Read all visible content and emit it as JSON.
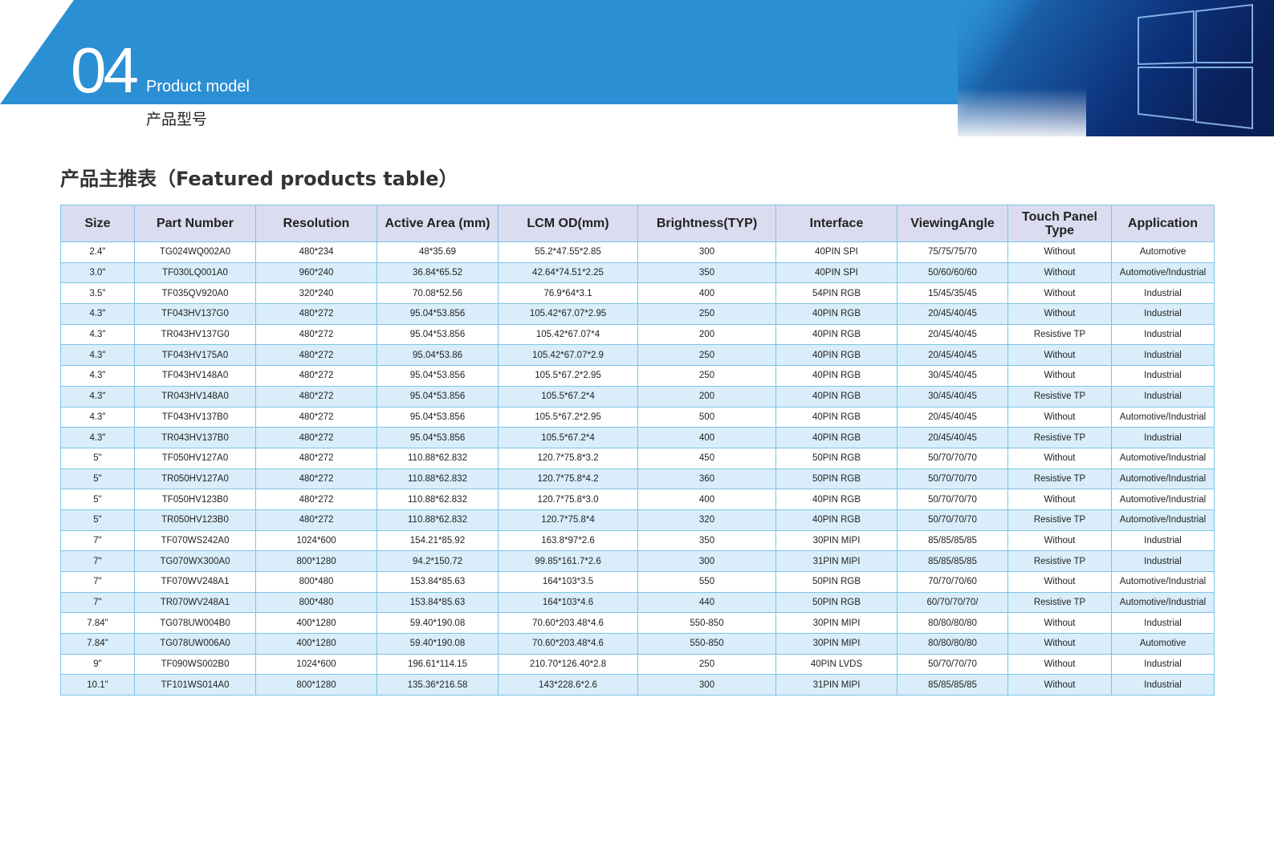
{
  "header": {
    "number": "04",
    "title": "Product model",
    "subtitle": "产品型号"
  },
  "table": {
    "title": "产品主推表（Featured products table）",
    "columns": [
      "Size",
      "Part Number",
      "Resolution",
      "Active Area (mm)",
      "LCM OD(mm)",
      "Brightness(TYP)",
      "Interface",
      "ViewingAngle",
      "Touch Panel Type",
      "Application"
    ],
    "rows": [
      [
        "2.4\"",
        "TG024WQ002A0",
        "480*234",
        "48*35.69",
        "55.2*47.55*2.85",
        "300",
        "40PIN SPI",
        "75/75/75/70",
        "Without",
        "Automotive"
      ],
      [
        "3.0\"",
        "TF030LQ001A0",
        "960*240",
        "36.84*65.52",
        "42.64*74.51*2.25",
        "350",
        "40PIN SPI",
        "50/60/60/60",
        "Without",
        "Automotive/Industrial"
      ],
      [
        "3.5\"",
        "TF035QV920A0",
        "320*240",
        "70.08*52.56",
        "76.9*64*3.1",
        "400",
        "54PIN RGB",
        "15/45/35/45",
        "Without",
        "Industrial"
      ],
      [
        "4.3\"",
        "TF043HV137G0",
        "480*272",
        "95.04*53.856",
        "105.42*67.07*2.95",
        "250",
        "40PIN RGB",
        "20/45/40/45",
        "Without",
        "Industrial"
      ],
      [
        "4.3\"",
        "TR043HV137G0",
        "480*272",
        "95.04*53.856",
        "105.42*67.07*4",
        "200",
        "40PIN RGB",
        "20/45/40/45",
        "Resistive TP",
        "Industrial"
      ],
      [
        "4.3\"",
        "TF043HV175A0",
        "480*272",
        "95.04*53.86",
        "105.42*67.07*2.9",
        "250",
        "40PIN RGB",
        "20/45/40/45",
        "Without",
        "Industrial"
      ],
      [
        "4.3\"",
        "TF043HV148A0",
        "480*272",
        "95.04*53.856",
        "105.5*67.2*2.95",
        "250",
        "40PIN RGB",
        "30/45/40/45",
        "Without",
        "Industrial"
      ],
      [
        "4.3\"",
        "TR043HV148A0",
        "480*272",
        "95.04*53.856",
        "105.5*67.2*4",
        "200",
        "40PIN RGB",
        "30/45/40/45",
        "Resistive TP",
        "Industrial"
      ],
      [
        "4.3\"",
        "TF043HV137B0",
        "480*272",
        "95.04*53.856",
        "105.5*67.2*2.95",
        "500",
        "40PIN RGB",
        "20/45/40/45",
        "Without",
        "Automotive/Industrial"
      ],
      [
        "4.3\"",
        "TR043HV137B0",
        "480*272",
        "95.04*53.856",
        "105.5*67.2*4",
        "400",
        "40PIN RGB",
        "20/45/40/45",
        "Resistive TP",
        "Industrial"
      ],
      [
        "5\"",
        "TF050HV127A0",
        "480*272",
        "110.88*62.832",
        "120.7*75.8*3.2",
        "450",
        "50PIN RGB",
        "50/70/70/70",
        "Without",
        "Automotive/Industrial"
      ],
      [
        "5\"",
        "TR050HV127A0",
        "480*272",
        "110.88*62.832",
        "120.7*75.8*4.2",
        "360",
        "50PIN RGB",
        "50/70/70/70",
        "Resistive TP",
        "Automotive/Industrial"
      ],
      [
        "5\"",
        "TF050HV123B0",
        "480*272",
        "110.88*62.832",
        "120.7*75.8*3.0",
        "400",
        "40PIN RGB",
        "50/70/70/70",
        "Without",
        "Automotive/Industrial"
      ],
      [
        "5\"",
        "TR050HV123B0",
        "480*272",
        "110.88*62.832",
        "120.7*75.8*4",
        "320",
        "40PIN RGB",
        "50/70/70/70",
        "Resistive TP",
        "Automotive/Industrial"
      ],
      [
        "7\"",
        "TF070WS242A0",
        "1024*600",
        "154.21*85.92",
        "163.8*97*2.6",
        "350",
        "30PIN MIPI",
        "85/85/85/85",
        "Without",
        "Industrial"
      ],
      [
        "7\"",
        "TG070WX300A0",
        "800*1280",
        "94.2*150.72",
        "99.85*161.7*2.6",
        "300",
        "31PIN MIPI",
        "85/85/85/85",
        "Resistive TP",
        "Industrial"
      ],
      [
        "7\"",
        "TF070WV248A1",
        "800*480",
        "153.84*85.63",
        "164*103*3.5",
        "550",
        "50PIN RGB",
        "70/70/70/60",
        "Without",
        "Automotive/Industrial"
      ],
      [
        "7\"",
        "TR070WV248A1",
        "800*480",
        "153.84*85.63",
        "164*103*4.6",
        "440",
        "50PIN RGB",
        "60/70/70/70/",
        "Resistive TP",
        "Automotive/Industrial"
      ],
      [
        "7.84\"",
        "TG078UW004B0",
        "400*1280",
        "59.40*190.08",
        "70.60*203.48*4.6",
        "550-850",
        "30PIN MIPI",
        "80/80/80/80",
        "Without",
        "Industrial"
      ],
      [
        "7.84\"",
        "TG078UW006A0",
        "400*1280",
        "59.40*190.08",
        "70.60*203.48*4.6",
        "550-850",
        "30PIN MIPI",
        "80/80/80/80",
        "Without",
        "Automotive"
      ],
      [
        "9\"",
        "TF090WS002B0",
        "1024*600",
        "196.61*114.15",
        "210.70*126.40*2.8",
        "250",
        "40PIN LVDS",
        "50/70/70/70",
        "Without",
        "Industrial"
      ],
      [
        "10.1\"",
        "TF101WS014A0",
        "800*1280",
        "135.36*216.58",
        "143*228.6*2.6",
        "300",
        "31PIN MIPI",
        "85/85/85/85",
        "Without",
        "Industrial"
      ]
    ]
  }
}
